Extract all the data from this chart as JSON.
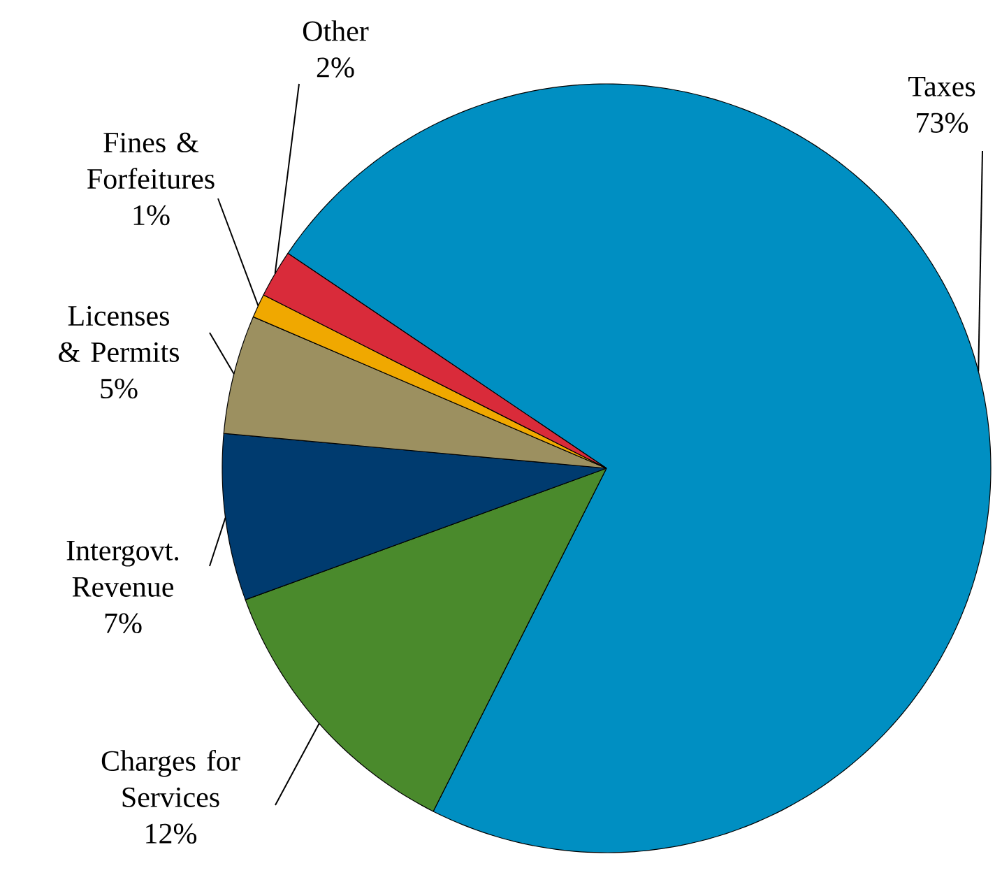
{
  "chart_data": {
    "type": "pie",
    "categories": [
      "Taxes",
      "Charges for Services",
      "Intergovt. Revenue",
      "Licenses & Permits",
      "Fines & Forfeitures",
      "Other"
    ],
    "values": [
      73,
      12,
      7,
      5,
      1,
      2
    ],
    "value_labels": [
      "73%",
      "12%",
      "7%",
      "5%",
      "1%",
      "2%"
    ],
    "colors": [
      "#008fc2",
      "#4a8a2c",
      "#003b6f",
      "#9c9060",
      "#f0a800",
      "#d92b3a"
    ]
  }
}
